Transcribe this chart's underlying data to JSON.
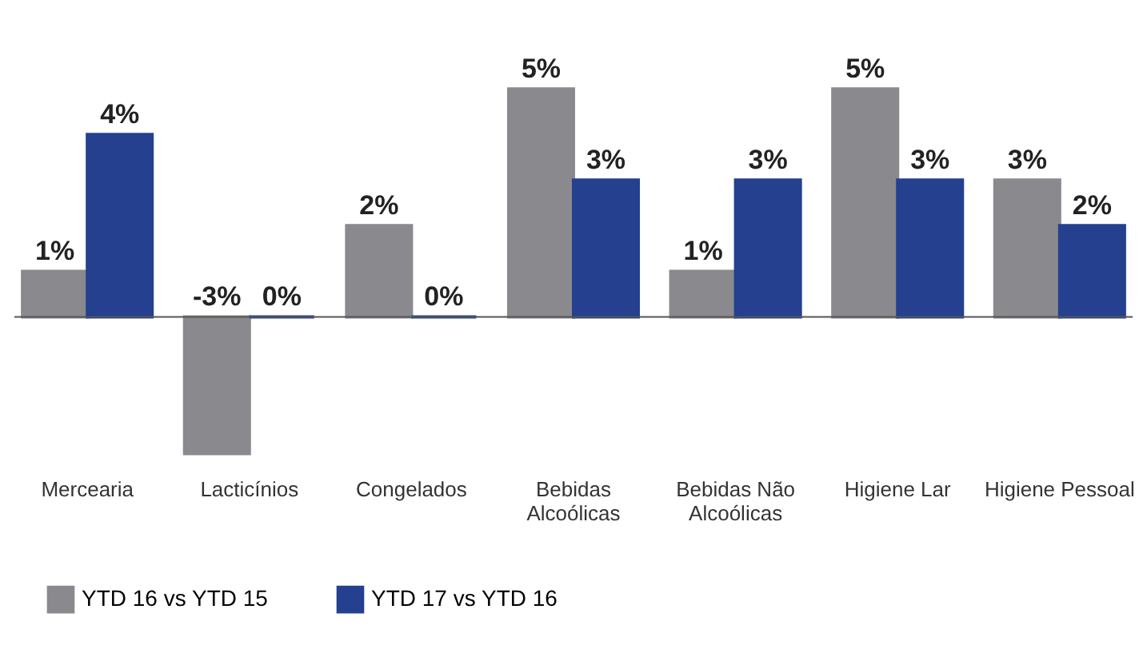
{
  "chart_data": {
    "type": "bar",
    "categories": [
      "Mercearia",
      "Lacticínios",
      "Congelados",
      "Bebidas Alcoólicas",
      "Bebidas Não Alcoólicas",
      "Higiene Lar",
      "Higiene Pessoal"
    ],
    "series": [
      {
        "name": "YTD 16 vs YTD 15",
        "color": "#8a8a8e",
        "values": [
          1,
          -3,
          2,
          5,
          1,
          5,
          3
        ],
        "value_labels": [
          "1%",
          "-3%",
          "2%",
          "5%",
          "1%",
          "5%",
          "3%"
        ]
      },
      {
        "name": "YTD 17 vs YTD 16",
        "color": "#24408e",
        "values": [
          4,
          0,
          0,
          3,
          3,
          3,
          2
        ],
        "value_labels": [
          "4%",
          "0%",
          "0%",
          "3%",
          "3%",
          "3%",
          "2%"
        ]
      }
    ],
    "tick_labels": "x",
    "legend": "bottom",
    "grid": false
  }
}
